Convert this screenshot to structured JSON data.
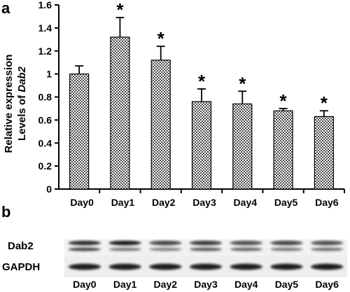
{
  "panel_a_label": "a",
  "panel_b_label": "b",
  "chart_data": {
    "type": "bar",
    "categories": [
      "Day0",
      "Day1",
      "Day2",
      "Day3",
      "Day4",
      "Day5",
      "Day6"
    ],
    "values": [
      1.0,
      1.32,
      1.12,
      0.76,
      0.74,
      0.68,
      0.63
    ],
    "errors": [
      0.07,
      0.17,
      0.12,
      0.11,
      0.11,
      0.02,
      0.05
    ],
    "significant": [
      false,
      true,
      true,
      true,
      true,
      true,
      true
    ],
    "significance_marker": "*",
    "ylabel_line1": "Relative expression",
    "ylabel_line2_prefix": "Levels of ",
    "ylabel_gene": "Dab2",
    "ylim": [
      0,
      1.6
    ],
    "yticks": [
      "0",
      "0.2",
      "0.4",
      "0.6",
      "0.8",
      "1",
      "1.2",
      "1.4",
      "1.6"
    ],
    "bar_fill": "checkered gray",
    "grid": false
  },
  "blot": {
    "rows": [
      "Dab2",
      "GAPDH"
    ],
    "lanes": [
      "Day0",
      "Day1",
      "Day2",
      "Day3",
      "Day4",
      "Day5",
      "Day6"
    ]
  }
}
